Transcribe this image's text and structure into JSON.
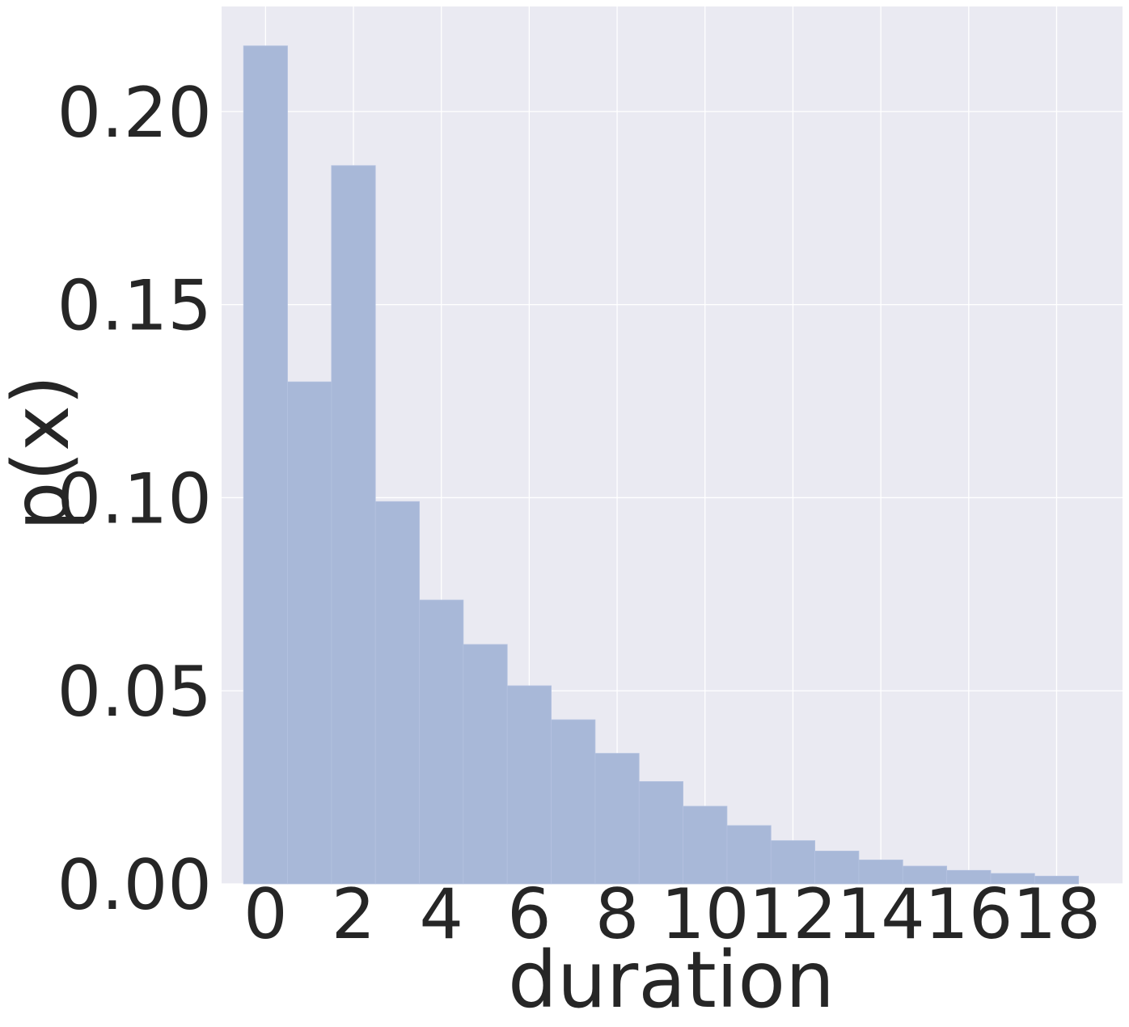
{
  "chart_data": {
    "type": "bar",
    "subtype": "histogram",
    "xlabel": "duration",
    "ylabel": "p(x)",
    "bin_width": 1,
    "x": [
      0,
      1,
      2,
      3,
      4,
      5,
      6,
      7,
      8,
      9,
      10,
      11,
      12,
      13,
      14,
      15,
      16,
      17,
      18
    ],
    "values": [
      0.217,
      0.13,
      0.186,
      0.099,
      0.0735,
      0.062,
      0.0513,
      0.0425,
      0.0338,
      0.0265,
      0.0201,
      0.0151,
      0.0112,
      0.0085,
      0.0062,
      0.0046,
      0.0035,
      0.0027,
      0.002
    ],
    "xlim": [
      -1,
      19.5
    ],
    "ylim": [
      0,
      0.2272
    ],
    "xticks": [
      "0",
      "2",
      "4",
      "6",
      "8",
      "10",
      "12",
      "14",
      "16",
      "18"
    ],
    "yticks": [
      "0.00",
      "0.05",
      "0.10",
      "0.15",
      "0.20"
    ],
    "grid": true,
    "colors": {
      "background": "#eaeaf2",
      "grid": "#ffffff",
      "bar": "#a8b8d8",
      "text": "#262626"
    }
  }
}
